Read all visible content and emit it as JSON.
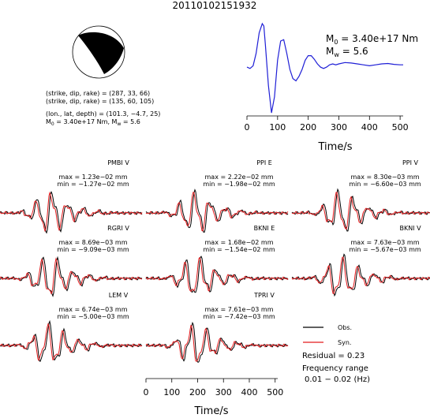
{
  "title": "20110102151932",
  "mechanism": {
    "line1": "(strike, dip, rake) = (287, 33, 66)",
    "line2": "(strike, dip, rake) = (135, 60, 105)",
    "line3": "(lon., lat, depth) = (101.3, −4.7, 25)",
    "m0_text": "M",
    "m0_sub": "0",
    "m0_val": " = 3.40e+17 Nm, M",
    "mw_sub": "w",
    "mw_val": " = 5.6"
  },
  "stf": {
    "m0_label": "M",
    "m0_sub": "0",
    "m0_value": " = 3.40e+17 Nm",
    "mw_label": "M",
    "mw_sub": "w",
    "mw_value": " = 5.6",
    "xlabel": "Time/s"
  },
  "traces": {
    "xlabel": "Time/s"
  },
  "legend": {
    "obs": "Obs.",
    "syn": "Syn.",
    "residual": "Residual = 0.23",
    "freq_title": "Frequency range",
    "freq_range": "0.01 − 0.02 (Hz)"
  },
  "colors": {
    "observed": "#000000",
    "synthetic": "#e41a1c",
    "stf": "#1f1fd6"
  },
  "chart_data": [
    {
      "type": "line",
      "name": "source-time-function",
      "xlabel": "Time/s",
      "xlim": [
        0,
        510
      ],
      "xticks": [
        0,
        100,
        200,
        300,
        400,
        500
      ],
      "series": [
        {
          "x": [
            0,
            10,
            20,
            30,
            40,
            50,
            55,
            60,
            70,
            80,
            90,
            100,
            110,
            120,
            130,
            140,
            150,
            160,
            170,
            180,
            190,
            200,
            210,
            220,
            230,
            240,
            250,
            260,
            270,
            280,
            290,
            300,
            320,
            340,
            360,
            380,
            400,
            420,
            440,
            460,
            480,
            500,
            510
          ],
          "y": [
            0.05,
            0.02,
            0.08,
            0.35,
            0.8,
            1.0,
            0.95,
            0.55,
            -0.35,
            -0.95,
            -0.6,
            0.2,
            0.62,
            0.65,
            0.35,
            0.0,
            -0.2,
            -0.25,
            -0.15,
            0.0,
            0.2,
            0.3,
            0.3,
            0.22,
            0.12,
            0.05,
            0.02,
            0.05,
            0.1,
            0.12,
            0.1,
            0.12,
            0.15,
            0.14,
            0.12,
            0.1,
            0.08,
            0.1,
            0.12,
            0.13,
            0.11,
            0.1,
            0.1
          ]
        }
      ]
    },
    {
      "type": "line",
      "name": "waveform",
      "station": "PMBI V",
      "max": "max = 1.23e−02 mm",
      "min": "min = −1.27e−02 mm"
    },
    {
      "type": "line",
      "name": "waveform",
      "station": "PPI E",
      "max": "max = 2.22e−02 mm",
      "min": "min = −1.98e−02 mm"
    },
    {
      "type": "line",
      "name": "waveform",
      "station": "PPI V",
      "max": "max = 8.30e−03 mm",
      "min": "min = −6.60e−03 mm"
    },
    {
      "type": "line",
      "name": "waveform",
      "station": "RGRI V",
      "max": "max = 8.69e−03 mm",
      "min": "min = −9.09e−03 mm"
    },
    {
      "type": "line",
      "name": "waveform",
      "station": "BKNI E",
      "max": "max = 1.68e−02 mm",
      "min": "min = −1.54e−02 mm"
    },
    {
      "type": "line",
      "name": "waveform",
      "station": "BKNI V",
      "max": "max = 7.63e−03 mm",
      "min": "min = −5.67e−03 mm"
    },
    {
      "type": "line",
      "name": "waveform",
      "station": "LEM V",
      "max": "max = 6.74e−03 mm",
      "min": "min = −5.00e−03 mm"
    },
    {
      "type": "line",
      "name": "waveform",
      "station": "TPRI V",
      "max": "max = 7.61e−03 mm",
      "min": "min = −7.42e−03 mm",
      "xlabel": "Time/s",
      "xlim": [
        0,
        510
      ],
      "xticks": [
        0,
        100,
        200,
        300,
        400,
        500
      ]
    }
  ]
}
